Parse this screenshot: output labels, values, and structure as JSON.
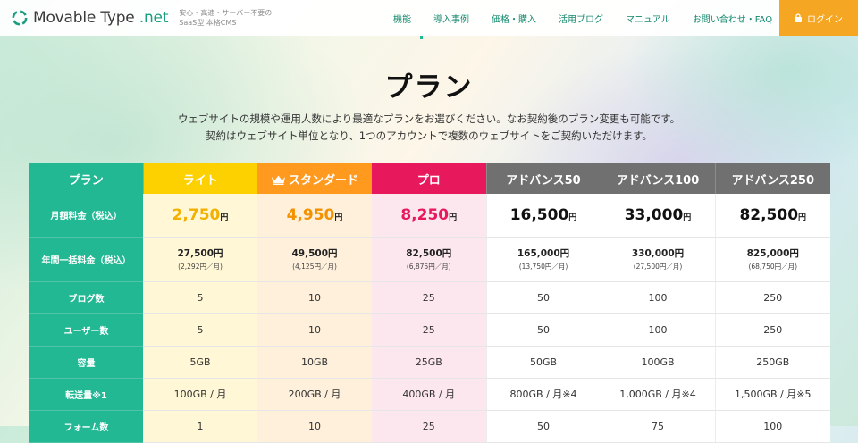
{
  "header": {
    "logo_main": "Movable Type",
    "logo_suffix": " .net",
    "tagline_1": "安心・高速・サーバー不要の",
    "tagline_2": "SaaS型 本格CMS",
    "nav": [
      "機能",
      "導入事例",
      "価格・購入",
      "活用ブログ",
      "マニュアル",
      "お問い合わせ・FAQ"
    ],
    "login": "ログイン"
  },
  "page": {
    "title": "プラン",
    "lead_1": "ウェブサイトの規模や運用人数により最適なプランをお選びください。なお契約後のプラン変更も可能です。",
    "lead_2": "契約はウェブサイト単位となり、1つのアカウントで複数のウェブサイトをご契約いただけます。"
  },
  "plans": {
    "header_label": "プラン",
    "names": [
      "ライト",
      "スタンダード",
      "プロ",
      "アドバンス50",
      "アドバンス100",
      "アドバンス250"
    ],
    "monthly_label": "月額料金（税込）",
    "monthly": [
      "2,750",
      "4,950",
      "8,250",
      "16,500",
      "33,000",
      "82,500"
    ],
    "yen": "円",
    "annual_label": "年間一括料金（税込）",
    "annual": [
      "27,500円",
      "49,500円",
      "82,500円",
      "165,000円",
      "330,000円",
      "825,000円"
    ],
    "annual_sub": [
      "(2,292円／月)",
      "(4,125円／月)",
      "(6,875円／月)",
      "(13,750円／月)",
      "(27,500円／月)",
      "(68,750円／月)"
    ],
    "rows": [
      {
        "label": "ブログ数",
        "values": [
          "5",
          "10",
          "25",
          "50",
          "100",
          "250"
        ]
      },
      {
        "label": "ユーザー数",
        "values": [
          "5",
          "10",
          "25",
          "50",
          "100",
          "250"
        ]
      },
      {
        "label": "容量",
        "values": [
          "5GB",
          "10GB",
          "25GB",
          "50GB",
          "100GB",
          "250GB"
        ]
      },
      {
        "label": "転送量※1",
        "values": [
          "100GB / 月",
          "200GB / 月",
          "400GB / 月",
          "800GB / 月※4",
          "1,000GB / 月※4",
          "1,500GB / 月※5"
        ]
      },
      {
        "label": "フォーム数",
        "values": [
          "1",
          "10",
          "25",
          "50",
          "75",
          "100"
        ]
      }
    ]
  },
  "colors": {
    "brand_green": "#22b893",
    "lite": "#fdd000",
    "standard": "#ff9a1f",
    "pro": "#e8185c",
    "advance": "#707070",
    "login": "#f5a623"
  }
}
